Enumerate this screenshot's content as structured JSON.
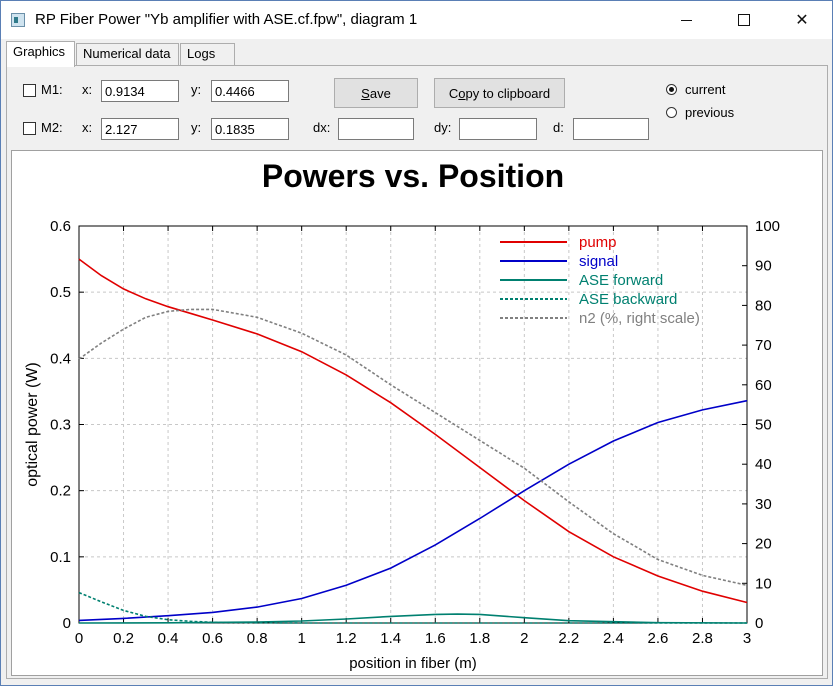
{
  "window": {
    "title": "RP Fiber Power \"Yb amplifier with ASE.cf.fpw\", diagram 1",
    "icon": "app-window-icon",
    "controls": [
      "minimize-icon",
      "maximize-icon",
      "close-icon"
    ]
  },
  "tabs": [
    {
      "label": "Graphics",
      "active": true
    },
    {
      "label": "Numerical data",
      "active": false
    },
    {
      "label": "Logs",
      "active": false
    }
  ],
  "markers": {
    "m1": {
      "label": "M1:",
      "checked": false,
      "x_label": "x:",
      "x_value": "0.9134",
      "y_label": "y:",
      "y_value": "0.4466"
    },
    "m2": {
      "label": "M2:",
      "checked": false,
      "x_label": "x:",
      "x_value": "2.127",
      "y_label": "y:",
      "y_value": "0.1835"
    },
    "dx_label": "dx:",
    "dx_value": "",
    "dy_label": "dy:",
    "dy_value": "",
    "d_label": "d:",
    "d_value": ""
  },
  "buttons": {
    "save": {
      "label_underlined": "S",
      "label_rest": "ave"
    },
    "copy": {
      "label_pre": "C",
      "label_underlined": "o",
      "label_rest": "py to clipboard"
    }
  },
  "radios": {
    "current": {
      "label": "current",
      "checked": true
    },
    "previous": {
      "label": "previous",
      "checked": false
    }
  },
  "chart_data": {
    "type": "line",
    "title": "Powers vs. Position",
    "xlabel": "position in fiber (m)",
    "ylabel": "optical power (W)",
    "xlim": [
      0,
      3
    ],
    "ylim": [
      0,
      0.6
    ],
    "y2lim": [
      0,
      100
    ],
    "xticks": [
      "0",
      "0.2",
      "0.4",
      "0.6",
      "0.8",
      "1",
      "1.2",
      "1.4",
      "1.6",
      "1.8",
      "2",
      "2.2",
      "2.4",
      "2.6",
      "2.8",
      "3"
    ],
    "yticks": [
      "0",
      "0.1",
      "0.2",
      "0.3",
      "0.4",
      "0.5",
      "0.6"
    ],
    "y2ticks": [
      "0",
      "10",
      "20",
      "30",
      "40",
      "50",
      "60",
      "70",
      "80",
      "90",
      "100"
    ],
    "grid": true,
    "legend_position": "top-right",
    "series": [
      {
        "name": "pump",
        "color": "#e00000",
        "dash": false,
        "axis": "left",
        "x": [
          0,
          0.1,
          0.2,
          0.3,
          0.4,
          0.5,
          0.6,
          0.8,
          1.0,
          1.2,
          1.4,
          1.6,
          1.8,
          2.0,
          2.2,
          2.4,
          2.6,
          2.8,
          3.0
        ],
        "y": [
          0.55,
          0.525,
          0.505,
          0.49,
          0.478,
          0.468,
          0.458,
          0.437,
          0.41,
          0.375,
          0.333,
          0.285,
          0.235,
          0.185,
          0.138,
          0.1,
          0.071,
          0.048,
          0.031
        ]
      },
      {
        "name": "signal",
        "color": "#0000c8",
        "dash": false,
        "axis": "left",
        "x": [
          0,
          0.2,
          0.4,
          0.6,
          0.8,
          1.0,
          1.2,
          1.4,
          1.6,
          1.8,
          2.0,
          2.2,
          2.4,
          2.6,
          2.8,
          3.0
        ],
        "y": [
          0.004,
          0.007,
          0.011,
          0.016,
          0.024,
          0.037,
          0.057,
          0.083,
          0.118,
          0.158,
          0.2,
          0.24,
          0.275,
          0.303,
          0.322,
          0.336
        ]
      },
      {
        "name": "ASE forward",
        "color": "#008070",
        "dash": false,
        "axis": "left",
        "x": [
          0,
          0.4,
          0.8,
          1.0,
          1.2,
          1.4,
          1.6,
          1.7,
          1.8,
          2.0,
          2.2,
          2.6,
          3.0
        ],
        "y": [
          0,
          0.0003,
          0.0015,
          0.003,
          0.006,
          0.01,
          0.013,
          0.0135,
          0.013,
          0.008,
          0.0035,
          0.0005,
          0
        ]
      },
      {
        "name": "ASE backward",
        "color": "#008070",
        "dash": true,
        "axis": "left",
        "x": [
          0,
          0.1,
          0.2,
          0.3,
          0.4,
          0.5,
          0.6,
          0.8,
          1.0,
          3.0
        ],
        "y": [
          0.046,
          0.032,
          0.019,
          0.01,
          0.005,
          0.0025,
          0.001,
          0.0003,
          0,
          0
        ]
      },
      {
        "name": "n2 (%, right scale)",
        "color": "#808080",
        "dash": true,
        "axis": "right",
        "x": [
          0,
          0.1,
          0.2,
          0.3,
          0.4,
          0.5,
          0.6,
          0.7,
          0.8,
          1.0,
          1.2,
          1.4,
          1.6,
          1.8,
          2.0,
          2.2,
          2.4,
          2.6,
          2.8,
          3.0
        ],
        "y": [
          66.5,
          70.5,
          74,
          77,
          78.5,
          79,
          79,
          78,
          77,
          73,
          67.5,
          60,
          53,
          46,
          39,
          30.5,
          22.5,
          16,
          12,
          9.5
        ]
      }
    ]
  }
}
